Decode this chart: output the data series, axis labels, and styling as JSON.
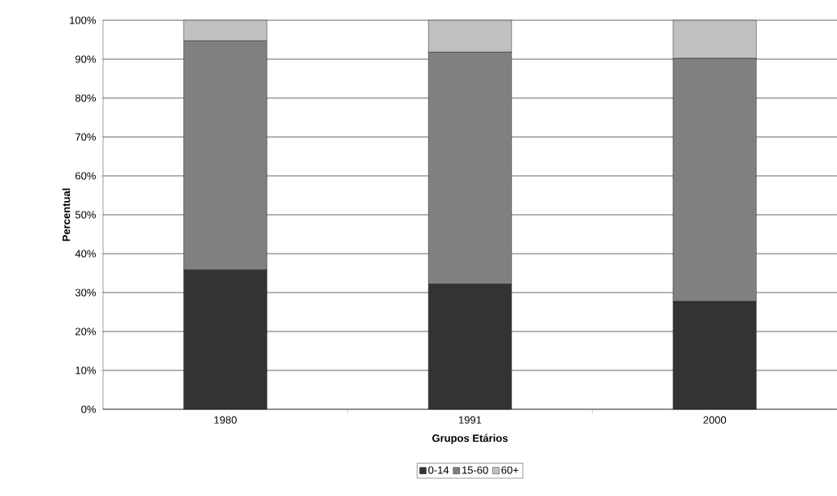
{
  "chart_data": {
    "type": "bar",
    "stacked": true,
    "xlabel": "Grupos Etários",
    "ylabel": "Percentual",
    "categories": [
      "1980",
      "1991",
      "2000"
    ],
    "series": [
      {
        "name": "0-14",
        "color": "#333333",
        "values": [
          35.8,
          32.2,
          27.7
        ]
      },
      {
        "name": "15-60",
        "color": "#808080",
        "values": [
          58.9,
          59.6,
          62.5
        ]
      },
      {
        "name": "60+",
        "color": "#c0c0c0",
        "values": [
          5.3,
          8.2,
          9.8
        ]
      }
    ],
    "ylim": [
      0,
      100
    ],
    "yticks": [
      {
        "value": 0,
        "label": "0%"
      },
      {
        "value": 10,
        "label": "10%"
      },
      {
        "value": 20,
        "label": "20%"
      },
      {
        "value": 30,
        "label": "30%"
      },
      {
        "value": 40,
        "label": "40%"
      },
      {
        "value": 50,
        "label": "50%"
      },
      {
        "value": 60,
        "label": "60%"
      },
      {
        "value": 70,
        "label": "70%"
      },
      {
        "value": 80,
        "label": "80%"
      },
      {
        "value": 90,
        "label": "90%"
      },
      {
        "value": 100,
        "label": "100%"
      }
    ],
    "grid": "y",
    "legend": "bottom"
  }
}
